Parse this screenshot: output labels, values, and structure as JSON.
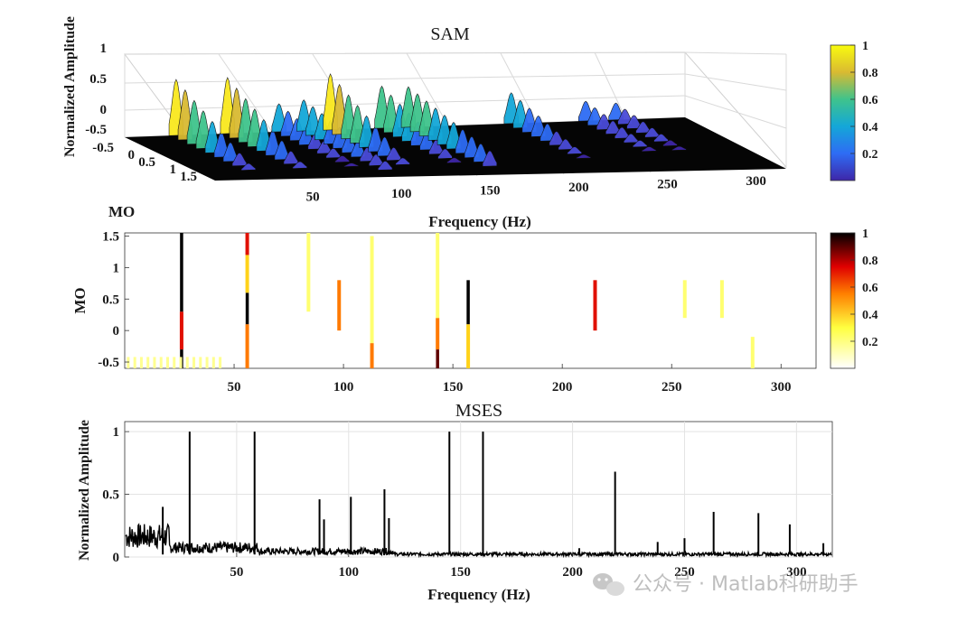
{
  "figure": {
    "watermark_text": "公众号 · Matlab科研助手"
  },
  "chart_data": [
    {
      "type": "surface3d",
      "title": "SAM",
      "xlabel": "Frequency (Hz)",
      "ylabel": "MO",
      "zlabel": "Normalized Amplitude",
      "xticks": [
        50,
        100,
        150,
        200,
        250,
        300
      ],
      "yticks": [
        -0.5,
        0,
        0.5,
        1,
        1.5
      ],
      "zticks": [
        -0.5,
        0,
        0.5,
        1
      ],
      "ytick_labels": [
        "-0.5",
        "0",
        "0.5",
        "1",
        "1.5"
      ],
      "zlim": [
        -0.5,
        1
      ],
      "colormap": "parula",
      "colorbar": {
        "ticks": [
          0.2,
          0.4,
          0.6,
          0.8,
          1
        ],
        "labels": [
          "0.2",
          "0.4",
          "0.6",
          "0.8",
          "1"
        ]
      },
      "ridges": [
        {
          "freq": 29,
          "peak": 1.0,
          "peak_mo": -0.5
        },
        {
          "freq": 58,
          "peak": 1.0,
          "peak_mo": -0.5
        },
        {
          "freq": 87,
          "peak": 0.5,
          "peak_mo": -0.5
        },
        {
          "freq": 101,
          "peak": 0.4,
          "peak_mo": 0.2
        },
        {
          "freq": 116,
          "peak": 1.0,
          "peak_mo": -0.5
        },
        {
          "freq": 145,
          "peak": 0.75,
          "peak_mo": -0.5
        },
        {
          "freq": 160,
          "peak": 0.45,
          "peak_mo": 0.6
        },
        {
          "freq": 218,
          "peak": 0.55,
          "peak_mo": -0.5
        },
        {
          "freq": 260,
          "peak": 0.35,
          "peak_mo": -0.5
        },
        {
          "freq": 277,
          "peak": 0.3,
          "peak_mo": -0.5
        }
      ]
    },
    {
      "type": "heatmap",
      "xlabel": "Frequency (Hz)",
      "ylabel": "MO",
      "xticks": [
        50,
        100,
        150,
        200,
        250,
        300
      ],
      "yticks": [
        -0.5,
        0,
        0.5,
        1,
        1.5
      ],
      "ytick_labels": [
        "-0.5",
        "0",
        "0.5",
        "1",
        "1.5"
      ],
      "xlim": [
        0,
        316
      ],
      "ylim": [
        -0.6,
        1.55
      ],
      "colormap": "hot-reversed",
      "colorbar": {
        "ticks": [
          0.2,
          0.4,
          0.6,
          0.8,
          1
        ],
        "labels": [
          "0.2",
          "0.4",
          "0.6",
          "0.8",
          "1"
        ]
      },
      "lines": [
        {
          "freq": 26,
          "segments": [
            [
              -0.6,
              -0.3,
              0.95
            ],
            [
              -0.3,
              0.3,
              0.6
            ],
            [
              0.3,
              1.55,
              0.95
            ]
          ]
        },
        {
          "freq": 56,
          "segments": [
            [
              -0.6,
              0.1,
              0.5
            ],
            [
              0.1,
              0.6,
              1.0
            ],
            [
              0.6,
              1.2,
              0.35
            ],
            [
              1.2,
              1.55,
              0.55
            ]
          ]
        },
        {
          "freq": 84,
          "segments": [
            [
              0.3,
              1.55,
              0.2
            ]
          ]
        },
        {
          "freq": 98,
          "segments": [
            [
              0.0,
              0.8,
              0.4
            ]
          ]
        },
        {
          "freq": 113,
          "segments": [
            [
              -0.6,
              -0.2,
              0.5
            ],
            [
              -0.2,
              1.5,
              0.2
            ]
          ]
        },
        {
          "freq": 143,
          "segments": [
            [
              -0.6,
              -0.3,
              0.8
            ],
            [
              -0.3,
              0.2,
              0.5
            ],
            [
              0.2,
              1.55,
              0.2
            ]
          ]
        },
        {
          "freq": 157,
          "segments": [
            [
              -0.6,
              0.1,
              0.35
            ],
            [
              0.1,
              0.8,
              0.95
            ]
          ]
        },
        {
          "freq": 215,
          "segments": [
            [
              0.0,
              0.8,
              0.55
            ]
          ]
        },
        {
          "freq": 256,
          "segments": [
            [
              0.2,
              0.8,
              0.2
            ]
          ]
        },
        {
          "freq": 273,
          "segments": [
            [
              0.2,
              0.8,
              0.2
            ]
          ]
        },
        {
          "freq": 287,
          "segments": [
            [
              -0.6,
              -0.1,
              0.15
            ]
          ]
        }
      ]
    },
    {
      "type": "line",
      "title": "MSES",
      "xlabel": "Frequency (Hz)",
      "ylabel": "Normalized Amplitude",
      "xticks": [
        50,
        100,
        150,
        200,
        250,
        300
      ],
      "yticks": [
        0,
        0.5,
        1
      ],
      "ytick_labels": [
        "0",
        "0.5",
        "1"
      ],
      "xlim": [
        0,
        316
      ],
      "ylim": [
        0,
        1.08
      ],
      "grid": true,
      "peaks": [
        [
          17,
          0.4
        ],
        [
          29,
          1.0
        ],
        [
          58,
          1.0
        ],
        [
          87,
          0.46
        ],
        [
          89,
          0.3
        ],
        [
          101,
          0.48
        ],
        [
          116,
          0.54
        ],
        [
          118,
          0.31
        ],
        [
          145,
          1.0
        ],
        [
          160,
          1.0
        ],
        [
          203,
          0.07
        ],
        [
          219,
          0.68
        ],
        [
          238,
          0.12
        ],
        [
          250,
          0.15
        ],
        [
          263,
          0.36
        ],
        [
          283,
          0.35
        ],
        [
          297,
          0.26
        ],
        [
          312,
          0.11
        ]
      ]
    }
  ]
}
